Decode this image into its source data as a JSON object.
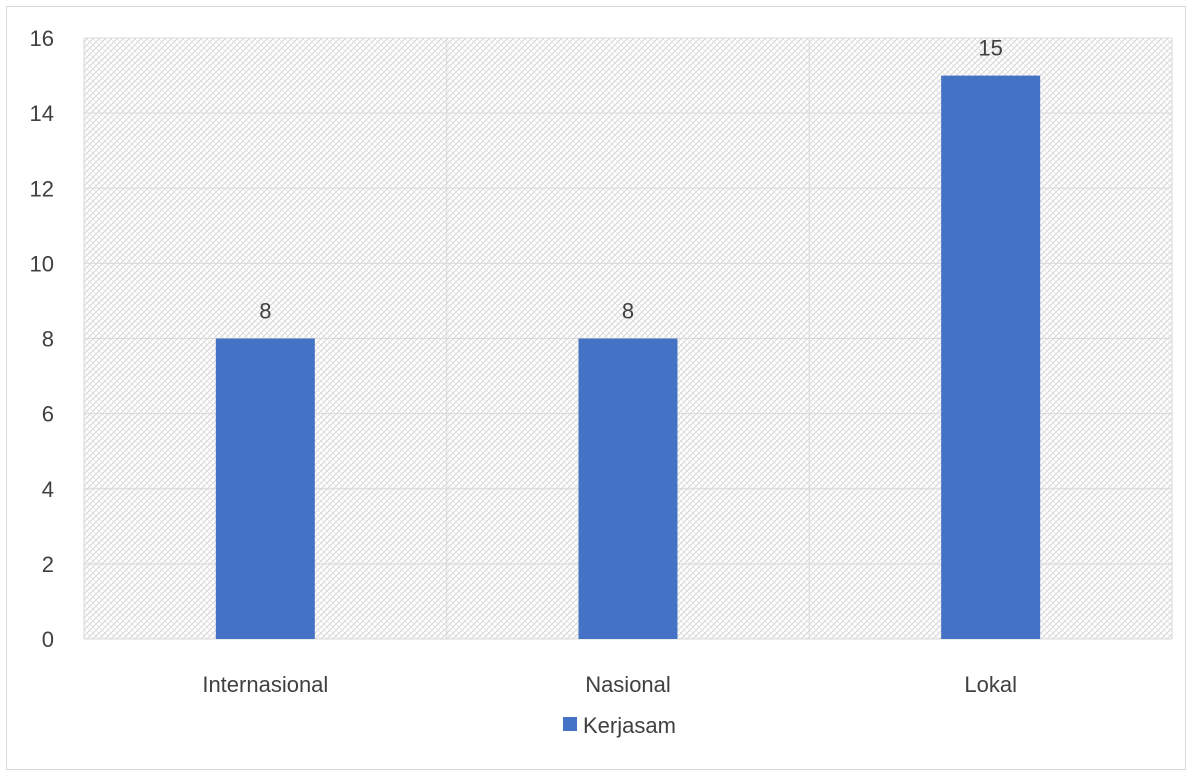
{
  "chart_data": {
    "type": "bar",
    "categories": [
      "Internasional",
      "Nasional",
      "Lokal"
    ],
    "series": [
      {
        "name": "Kerjasam",
        "values": [
          8,
          8,
          15
        ],
        "color": "#4472c4"
      }
    ],
    "data_labels": [
      "8",
      "8",
      "15"
    ],
    "title": "",
    "xlabel": "",
    "ylabel": "",
    "ylim": [
      0,
      16
    ],
    "yticks": [
      0,
      2,
      4,
      6,
      8,
      10,
      12,
      14,
      16
    ],
    "grid": true,
    "plot_fill": "light gray crosshatch pattern",
    "legend": {
      "position": "bottom",
      "entries": [
        "Kerjasam"
      ]
    }
  }
}
